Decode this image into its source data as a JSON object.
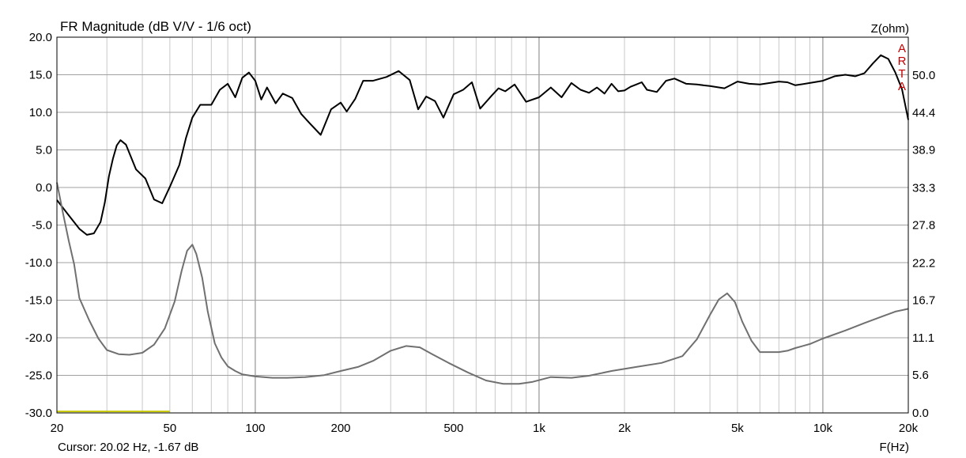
{
  "chart_data": {
    "type": "line",
    "title": "FR Magnitude (dB V/V - 1/6 oct)",
    "watermark": "ARTA",
    "cursor_readout": "Cursor: 20.02 Hz, -1.67 dB",
    "xlabel": "F(Hz)",
    "ylabel_right": "Z(ohm)",
    "x_scale": "log",
    "xlim": [
      20,
      20000
    ],
    "ylim": [
      -30,
      20
    ],
    "y2lim": [
      0,
      55.6
    ],
    "grid": true,
    "x_tick_values": [
      20,
      50,
      100,
      200,
      500,
      1000,
      2000,
      5000,
      10000,
      20000
    ],
    "x_tick_labels": [
      "20",
      "50",
      "100",
      "200",
      "500",
      "1k",
      "2k",
      "5k",
      "10k",
      "20k"
    ],
    "y_tick_labels": [
      "20.0",
      "15.0",
      "10.0",
      "5.0",
      "0.0",
      "-5.0",
      "-10.0",
      "-15.0",
      "-20.0",
      "-25.0",
      "-30.0"
    ],
    "y2_tick_labels": [
      "50.0",
      "44.4",
      "38.9",
      "33.3",
      "27.8",
      "22.2",
      "16.7",
      "11.1",
      "5.6",
      "0.0"
    ],
    "series": [
      {
        "color": "#000000",
        "axis": "left",
        "x": [
          20,
          22,
          24,
          25.5,
          27,
          28.5,
          29.5,
          30.5,
          31.5,
          32.5,
          33.5,
          35,
          38,
          41,
          44,
          47,
          50,
          54,
          57,
          60,
          64,
          70,
          75,
          80,
          85,
          90,
          95,
          100,
          105,
          110,
          118,
          125,
          135,
          145,
          155,
          170,
          185,
          200,
          210,
          225,
          240,
          260,
          290,
          320,
          350,
          375,
          400,
          430,
          460,
          500,
          540,
          580,
          620,
          680,
          720,
          760,
          820,
          900,
          1000,
          1100,
          1200,
          1300,
          1400,
          1500,
          1600,
          1700,
          1800,
          1900,
          2000,
          2100,
          2200,
          2300,
          2400,
          2600,
          2800,
          3000,
          3300,
          3600,
          4000,
          4500,
          5000,
          5500,
          6000,
          6500,
          7000,
          7500,
          8000,
          9000,
          10000,
          11000,
          12000,
          13000,
          14000,
          15000,
          16000,
          17000,
          18000,
          19000,
          20000
        ],
        "y": [
          -1.67,
          -3.7,
          -5.5,
          -6.3,
          -6.1,
          -4.6,
          -2.0,
          1.5,
          3.8,
          5.6,
          6.3,
          5.7,
          2.4,
          1.2,
          -1.6,
          -2.1,
          0.1,
          3.0,
          6.6,
          9.3,
          11.0,
          11.0,
          13.0,
          13.8,
          12.0,
          14.6,
          15.3,
          14.2,
          11.7,
          13.3,
          11.2,
          12.5,
          11.9,
          9.8,
          8.6,
          7.0,
          10.4,
          11.3,
          10.1,
          11.8,
          14.2,
          14.2,
          14.7,
          15.5,
          14.3,
          10.4,
          12.1,
          11.5,
          9.3,
          12.4,
          13.0,
          14.0,
          10.5,
          12.2,
          13.2,
          12.8,
          13.7,
          11.4,
          12.0,
          13.3,
          12.0,
          13.9,
          13.0,
          12.6,
          13.3,
          12.5,
          13.8,
          12.8,
          12.9,
          13.4,
          13.7,
          14.0,
          13.0,
          12.7,
          14.2,
          14.5,
          13.8,
          13.7,
          13.5,
          13.2,
          14.1,
          13.8,
          13.7,
          13.9,
          14.1,
          14.0,
          13.6,
          13.9,
          14.2,
          14.8,
          15.0,
          14.8,
          15.2,
          16.5,
          17.6,
          17.1,
          15.3,
          13.1,
          9.0
        ]
      },
      {
        "color": "#707070",
        "axis": "right",
        "x": [
          20,
          21,
          22,
          23,
          24,
          26,
          28,
          30,
          33,
          36,
          40,
          44,
          48,
          52,
          55,
          57.5,
          60,
          62,
          65,
          68,
          72,
          76,
          80,
          85,
          90,
          100,
          115,
          130,
          150,
          175,
          200,
          230,
          260,
          300,
          340,
          380,
          420,
          480,
          560,
          650,
          750,
          850,
          950,
          1100,
          1300,
          1500,
          1800,
          2200,
          2700,
          3200,
          3600,
          4000,
          4300,
          4600,
          4900,
          5200,
          5600,
          6000,
          6500,
          7000,
          7500,
          8000,
          9000,
          10000,
          12000,
          14000,
          16000,
          18000,
          20000
        ],
        "y": [
          34.1,
          29.6,
          25.5,
          22.0,
          17.0,
          13.7,
          11.0,
          9.3,
          8.7,
          8.6,
          8.9,
          10.1,
          12.5,
          16.5,
          21.0,
          24.0,
          24.9,
          23.5,
          20.0,
          15.0,
          10.3,
          8.2,
          6.9,
          6.2,
          5.7,
          5.4,
          5.2,
          5.2,
          5.3,
          5.6,
          6.2,
          6.8,
          7.7,
          9.2,
          9.9,
          9.7,
          8.7,
          7.4,
          6.0,
          4.8,
          4.3,
          4.3,
          4.6,
          5.3,
          5.2,
          5.5,
          6.2,
          6.8,
          7.4,
          8.4,
          10.9,
          14.5,
          16.8,
          17.7,
          16.4,
          13.5,
          10.7,
          9.0,
          9.0,
          9.0,
          9.2,
          9.6,
          10.2,
          11.0,
          12.2,
          13.3,
          14.2,
          15.0,
          15.4
        ]
      },
      {
        "color": "#c8c800",
        "axis": "left",
        "x": [
          20,
          50
        ],
        "y": [
          -29.8,
          -29.8
        ]
      }
    ]
  }
}
